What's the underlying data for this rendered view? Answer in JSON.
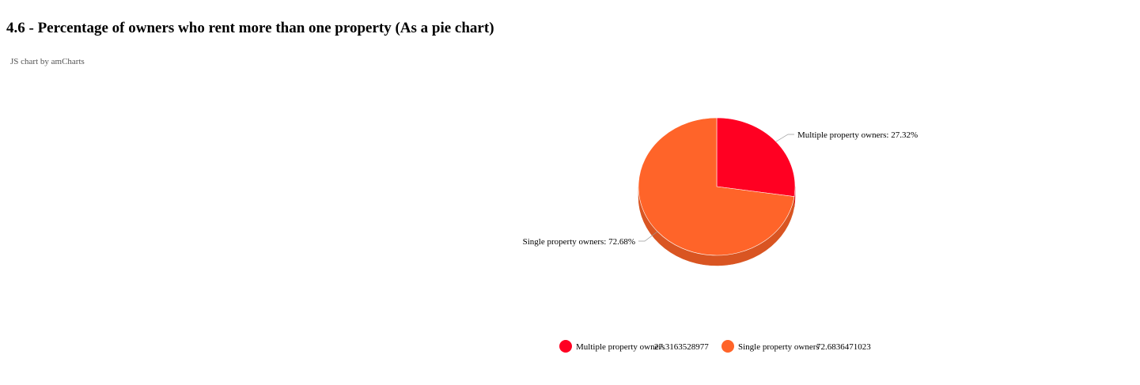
{
  "page": {
    "title": "4.6 - Percentage of owners who rent more than one property (As a pie chart)",
    "credit": "JS chart by amCharts"
  },
  "chart_data": {
    "type": "pie",
    "style": "3d",
    "title": "",
    "legend_position": "bottom",
    "slices": [
      {
        "name": "Multiple property owners",
        "value": 27.3163528977,
        "percent_label": "27.32%",
        "color": "#ff0022",
        "side_color": "#d9001d"
      },
      {
        "name": "Single property owners",
        "value": 72.6836471023,
        "percent_label": "72.68%",
        "color": "#ff6429",
        "side_color": "#d95522"
      }
    ],
    "slice_labels": [
      "Multiple property owners: 27.32%",
      "Single property owners: 72.68%"
    ],
    "legend": [
      {
        "name": "Multiple property owners",
        "value": "27.3163528977"
      },
      {
        "name": "Single property owners",
        "value": "72.6836471023"
      }
    ]
  }
}
